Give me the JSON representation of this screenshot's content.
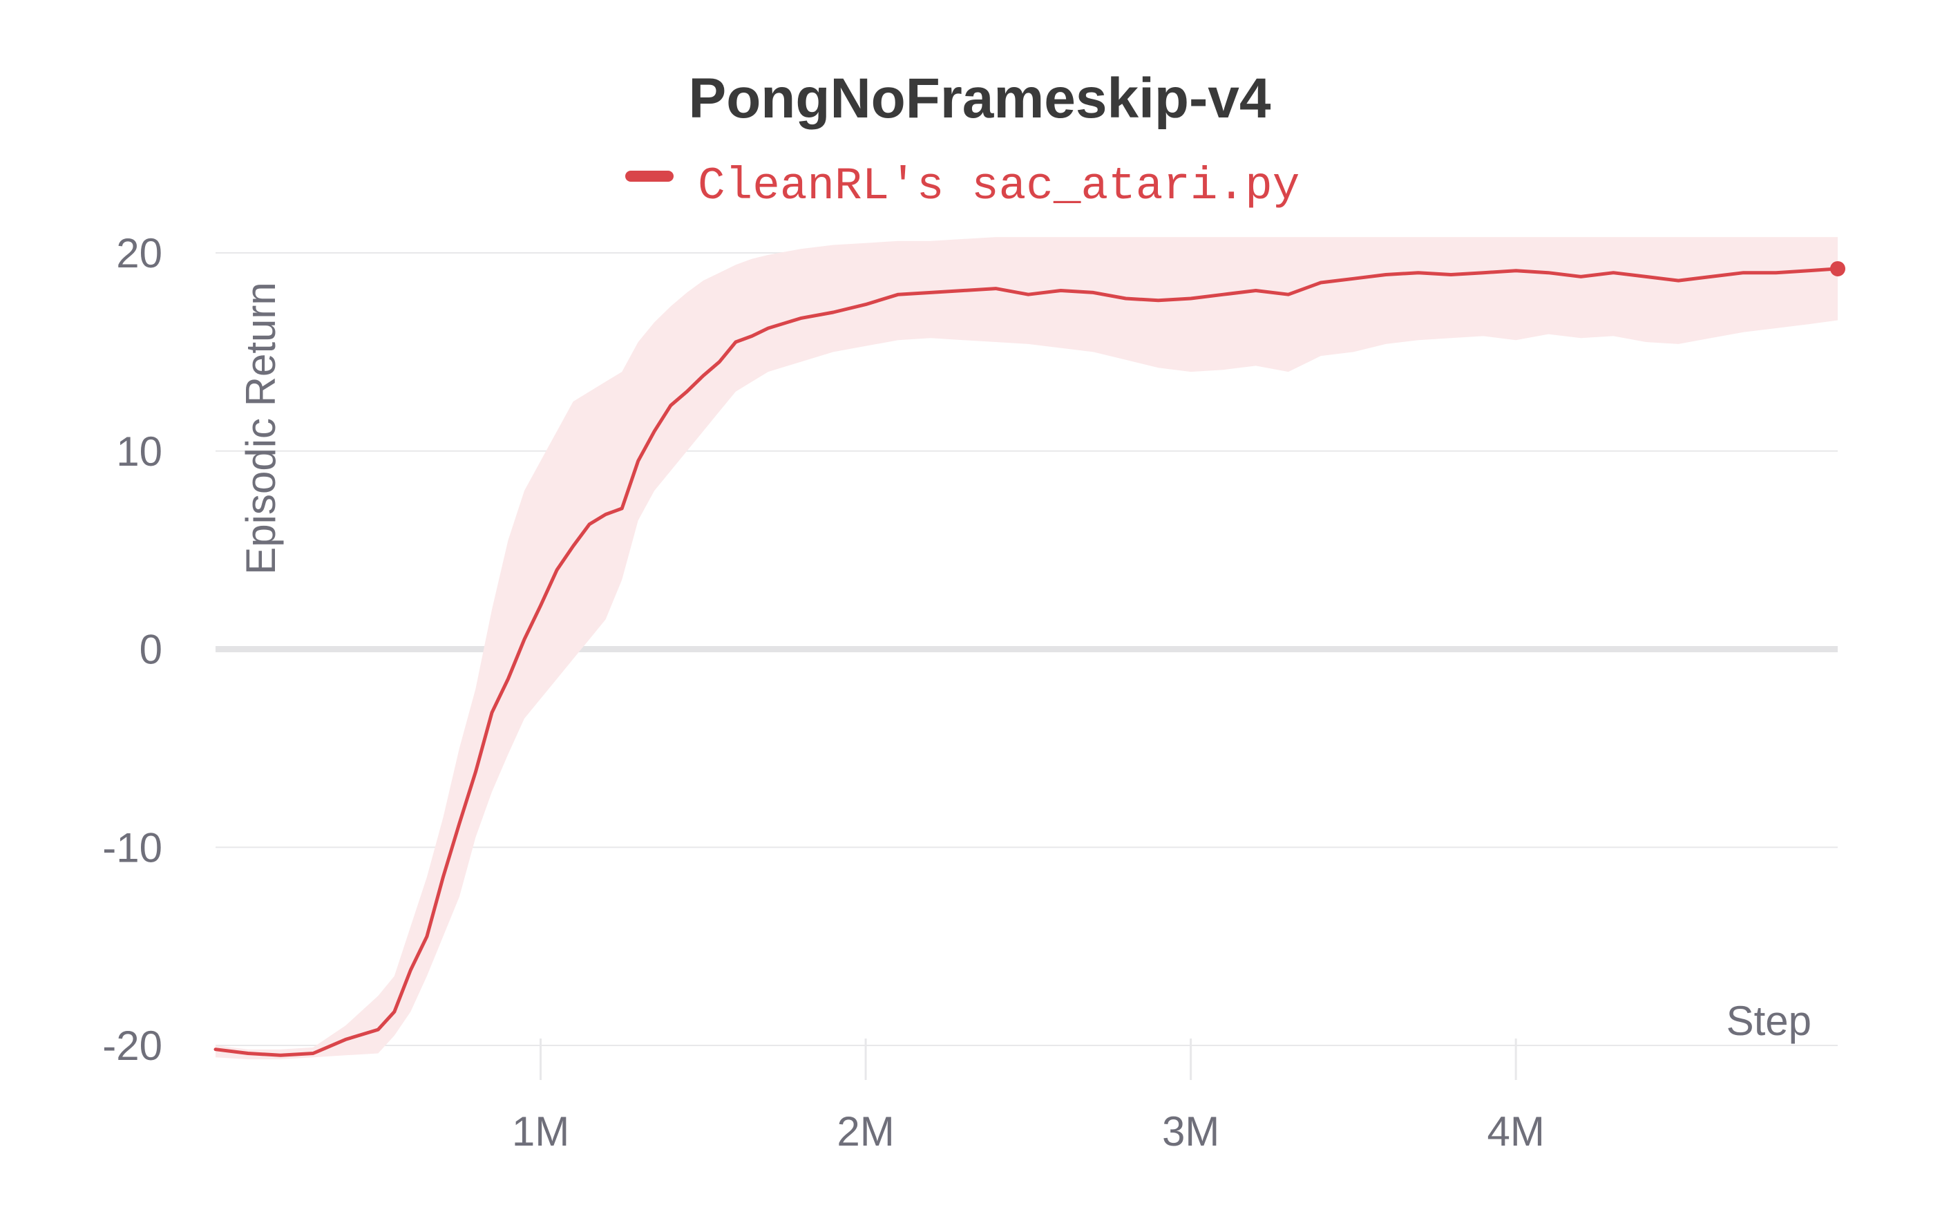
{
  "chart_data": {
    "type": "line",
    "title": "PongNoFrameskip-v4",
    "xlabel": "Step",
    "ylabel": "Episodic Return",
    "xlim": [
      0,
      4990000
    ],
    "ylim": [
      -21,
      22
    ],
    "x_ticks": [
      1000000,
      2000000,
      3000000,
      4000000
    ],
    "x_tick_labels": [
      "1M",
      "2M",
      "3M",
      "4M"
    ],
    "y_ticks": [
      -20,
      -10,
      0,
      10,
      20
    ],
    "y_tick_labels": [
      "-20",
      "-10",
      "0",
      "10",
      "20"
    ],
    "grid": true,
    "legend_position": "top-center",
    "colors": {
      "line": "#d9454a",
      "band": "#fbe9ea",
      "grid": "#e8e8ea",
      "zero_line": "#e3e3e5",
      "tick_text": "#6f6f7a"
    },
    "series": [
      {
        "name": "CleanRL's sac_atari.py",
        "x": [
          0,
          100000,
          200000,
          300000,
          400000,
          500000,
          550000,
          600000,
          650000,
          700000,
          750000,
          800000,
          850000,
          900000,
          950000,
          1000000,
          1050000,
          1100000,
          1150000,
          1200000,
          1250000,
          1300000,
          1350000,
          1400000,
          1450000,
          1500000,
          1550000,
          1600000,
          1650000,
          1700000,
          1800000,
          1900000,
          2000000,
          2100000,
          2200000,
          2300000,
          2400000,
          2500000,
          2600000,
          2700000,
          2800000,
          2900000,
          3000000,
          3100000,
          3200000,
          3300000,
          3400000,
          3500000,
          3600000,
          3700000,
          3800000,
          3900000,
          4000000,
          4100000,
          4200000,
          4300000,
          4400000,
          4500000,
          4600000,
          4700000,
          4800000,
          4900000,
          4990000
        ],
        "y": [
          -20.2,
          -20.4,
          -20.5,
          -20.4,
          -19.7,
          -19.2,
          -18.3,
          -16.2,
          -14.5,
          -11.5,
          -8.8,
          -6.2,
          -3.2,
          -1.5,
          0.5,
          2.2,
          4.0,
          5.2,
          6.3,
          6.8,
          7.1,
          9.5,
          11.0,
          12.3,
          13.0,
          13.8,
          14.5,
          15.5,
          15.8,
          16.2,
          16.7,
          17.0,
          17.4,
          17.9,
          18.0,
          18.1,
          18.2,
          17.9,
          18.1,
          18.0,
          17.7,
          17.6,
          17.7,
          17.9,
          18.1,
          17.9,
          18.5,
          18.7,
          18.9,
          19.0,
          18.9,
          19.0,
          19.1,
          19.0,
          18.8,
          19.0,
          18.8,
          18.6,
          18.8,
          19.0,
          19.0,
          19.1,
          19.2
        ],
        "lower": [
          -20.6,
          -20.7,
          -20.7,
          -20.6,
          -20.5,
          -20.4,
          -19.5,
          -18.3,
          -16.5,
          -14.5,
          -12.5,
          -9.5,
          -7.2,
          -5.3,
          -3.5,
          -2.5,
          -1.5,
          -0.5,
          0.5,
          1.5,
          3.5,
          6.5,
          8.0,
          9.0,
          10.0,
          11.0,
          12.0,
          13.0,
          13.5,
          14.0,
          14.5,
          15.0,
          15.3,
          15.6,
          15.7,
          15.6,
          15.5,
          15.4,
          15.2,
          15.0,
          14.6,
          14.2,
          14.0,
          14.1,
          14.3,
          14.0,
          14.8,
          15.0,
          15.4,
          15.6,
          15.7,
          15.8,
          15.6,
          15.9,
          15.7,
          15.8,
          15.5,
          15.4,
          15.7,
          16.0,
          16.2,
          16.4,
          16.6
        ],
        "upper": [
          -20.0,
          -20.2,
          -20.2,
          -20.1,
          -19.0,
          -17.5,
          -16.5,
          -14.0,
          -11.5,
          -8.5,
          -5.0,
          -2.0,
          2.0,
          5.5,
          8.0,
          9.5,
          11.0,
          12.5,
          13.0,
          13.5,
          14.0,
          15.5,
          16.5,
          17.3,
          18.0,
          18.6,
          19.0,
          19.4,
          19.7,
          19.9,
          20.2,
          20.4,
          20.5,
          20.6,
          20.6,
          20.7,
          20.8,
          20.8,
          20.8,
          20.8,
          20.8,
          20.8,
          20.8,
          20.8,
          20.8,
          20.8,
          20.8,
          20.8,
          20.8,
          20.8,
          20.8,
          20.8,
          20.8,
          20.8,
          20.8,
          20.8,
          20.8,
          20.8,
          20.8,
          20.8,
          20.8,
          20.8,
          20.8
        ]
      }
    ]
  }
}
